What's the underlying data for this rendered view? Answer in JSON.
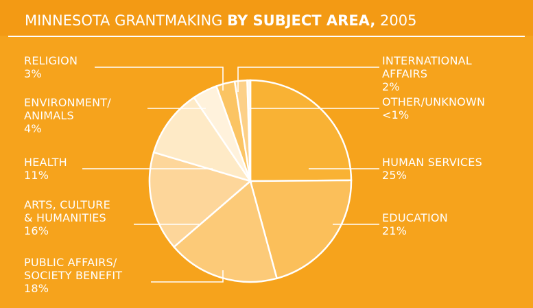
{
  "chart_data": {
    "type": "pie",
    "title": [
      "MINNESOTA GRANTMAKING",
      "BY SUBJECT AREA,",
      "2005"
    ],
    "categories": [
      "HUMAN SERVICES",
      "EDUCATION",
      "PUBLIC AFFAIRS/\nSOCIETY BENEFIT",
      "ARTS, CULTURE\n& HUMANITIES",
      "HEALTH",
      "ENVIRONMENT/\nANIMALS",
      "RELIGION",
      "INTERNATIONAL\nAFFAIRS",
      "OTHER/UNKNOWN"
    ],
    "values": [
      25,
      21,
      18,
      16,
      11,
      4,
      3,
      2,
      0.5
    ],
    "value_labels": [
      "25%",
      "21%",
      "18%",
      "16%",
      "11%",
      "4%",
      "3%",
      "2%",
      "<1%"
    ],
    "colors": [
      "#f9b234",
      "#fbbf5a",
      "#fcca78",
      "#fdd69a",
      "#feeac6",
      "#fff2dc",
      "#fbc463",
      "#fcd088",
      "#fff8ec"
    ]
  }
}
